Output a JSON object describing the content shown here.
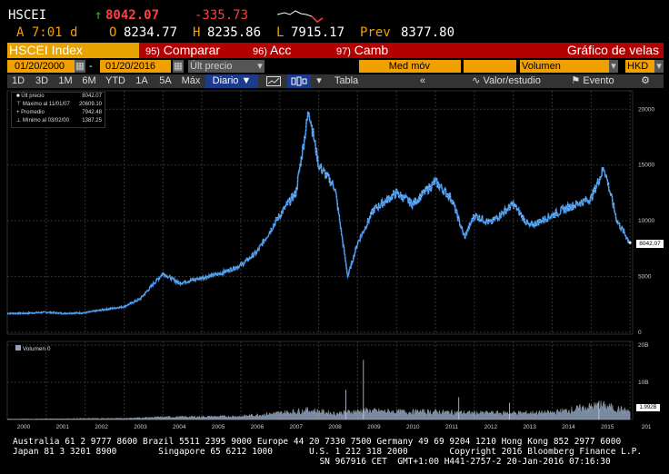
{
  "quote": {
    "ticker": "HSCEI",
    "last": "8042.07",
    "change": "-335.73",
    "time": "A 7:01 d",
    "open_label": "O",
    "open": "8234.77",
    "high_label": "H",
    "high": "8235.86",
    "low_label": "L",
    "low": "7915.17",
    "prev_label": "Prev",
    "prev": "8377.80"
  },
  "tabs": {
    "index": "HSCEI Index",
    "compare_num": "95)",
    "compare": "Comparar",
    "acc_num": "96)",
    "acc": "Acc",
    "camb_num": "97)",
    "camb": "Camb",
    "title": "Gráfico de velas"
  },
  "controls": {
    "start_date": "01/20/2000",
    "end_date": "01/20/2016",
    "price_field": "Últ precio",
    "med_mov": "Med móv",
    "volume": "Volumen",
    "currency": "HKD"
  },
  "toolbar": {
    "ranges": [
      "1D",
      "3D",
      "1M",
      "6M",
      "YTD",
      "1A",
      "5A",
      "Máx"
    ],
    "period": "Diario ▼",
    "table": "Tabla",
    "valor": "Valor/estudio",
    "evento": "Evento"
  },
  "legend": {
    "rows": [
      {
        "label": "Últ precio",
        "value": "8042.07"
      },
      {
        "label": "Máximo al 11/01/07",
        "value": "20609.10"
      },
      {
        "label": "Promedio",
        "value": "7942.48"
      },
      {
        "label": "Mínimo al 03/02/00",
        "value": "1387.25"
      }
    ]
  },
  "volume_legend": "Volumen 0",
  "volume_last_label": "1.992B",
  "last_price_label": "8042.07",
  "footer": {
    "line1": "Australia 61 2 9777 8600 Brazil 5511 2395 9000 Europe 44 20 7330 7500 Germany 49 69 9204 1210 Hong Kong 852 2977 6000",
    "line2": "Japan 81 3 3201 8900        Singapore 65 6212 1000       U.S. 1 212 318 2000        Copyright 2016 Bloomberg Finance L.P.",
    "line3": "                                                           SN 967916 CET  GMT+1:00 H441-2757-2 20-Jan-2016 07:16:30"
  },
  "colors": {
    "price_line": "#3f8fe0",
    "price_highlight": "#ffffff",
    "volume_fill": "#8fa2bc",
    "accent_red": "#b30000",
    "accent_orange": "#f0a000",
    "up_green": "#19c219",
    "down_red": "#ff3b3b"
  },
  "chart_data": [
    {
      "type": "line",
      "x_type": "date",
      "x": [
        "2000-01",
        "2000-06",
        "2001-01",
        "2001-06",
        "2002-01",
        "2002-06",
        "2003-01",
        "2003-06",
        "2004-01",
        "2004-06",
        "2005-01",
        "2005-06",
        "2006-01",
        "2006-06",
        "2007-01",
        "2007-06",
        "2007-10",
        "2008-01",
        "2008-06",
        "2008-10",
        "2009-01",
        "2009-06",
        "2010-01",
        "2010-06",
        "2011-01",
        "2011-06",
        "2011-10",
        "2012-01",
        "2012-06",
        "2013-01",
        "2013-06",
        "2014-01",
        "2014-06",
        "2015-01",
        "2015-05",
        "2015-09",
        "2016-01"
      ],
      "y": [
        1700,
        1700,
        1800,
        1700,
        1750,
        2000,
        2300,
        3000,
        5300,
        4400,
        4900,
        5200,
        6000,
        7200,
        10500,
        12500,
        20000,
        15000,
        13000,
        5000,
        8000,
        11000,
        12500,
        11500,
        13500,
        12000,
        8500,
        10500,
        9800,
        11500,
        9500,
        10500,
        11200,
        12000,
        14800,
        10000,
        8042
      ],
      "ylim": [
        0,
        21000
      ],
      "yticks": [
        0,
        5000,
        10000,
        15000,
        20000
      ],
      "xtick_labels": [
        "2000",
        "2001",
        "2002",
        "2003",
        "2004",
        "2005",
        "2006",
        "2007",
        "2008",
        "2009",
        "2010",
        "2011",
        "2012",
        "2013",
        "2014",
        "2015",
        "201"
      ],
      "last_value": 8042.07
    },
    {
      "type": "area",
      "x_type": "date",
      "x": [
        "2000-01",
        "2003-01",
        "2004-01",
        "2006-01",
        "2007-01",
        "2007-10",
        "2008-06",
        "2009-03",
        "2010-01",
        "2011-01",
        "2012-01",
        "2013-01",
        "2014-01",
        "2015-04",
        "2016-01"
      ],
      "y": [
        0.1,
        0.3,
        0.6,
        0.8,
        1.6,
        2.3,
        1.5,
        2.2,
        1.9,
        1.9,
        1.6,
        1.6,
        1.7,
        3.5,
        1.992
      ],
      "ylim": [
        0,
        20
      ],
      "ytick_labels": [
        "10B",
        "20B"
      ],
      "unit": "B"
    }
  ]
}
